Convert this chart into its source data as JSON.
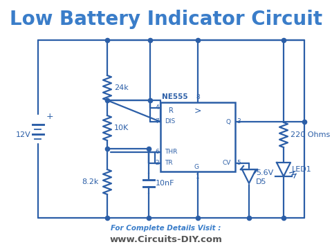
{
  "title": "Low Battery Indicator Circuit",
  "title_color": "#3a7dc9",
  "title_fontsize": 20,
  "footer_line1": "For Complete Details Visit :",
  "footer_line2": "www.Circuits-DIY.com",
  "footer_color1": "#3a7dc9",
  "footer_color2": "#555555",
  "wire_color": "#2b5ea7",
  "component_color": "#2b5ea7",
  "bg_color": "#ffffff",
  "labels": {
    "battery_voltage": "12V",
    "r1": "24k",
    "r2": "10K",
    "r3": "8.2k",
    "r4": "220 Ohms",
    "c1": "10nF",
    "zener_v": "5.6V",
    "zener_d": "D5",
    "led": "LED1",
    "ic": "NE555"
  }
}
